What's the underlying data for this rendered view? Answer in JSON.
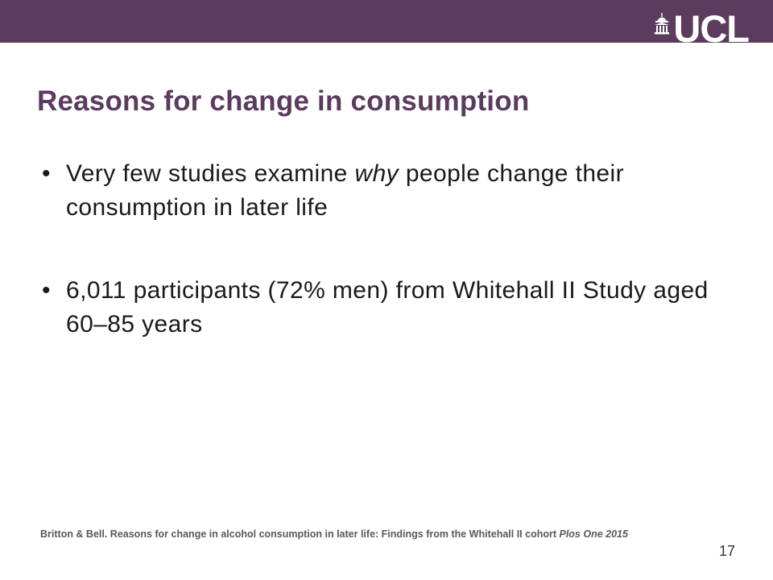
{
  "header": {
    "logo_text": "UCL",
    "bar_color": "#5c3c5e"
  },
  "slide": {
    "title": "Reasons for change in consumption",
    "title_color": "#5c3c5e",
    "bullets": [
      {
        "before": "Very few studies examine ",
        "emphasis": "why",
        "after": " people change their consumption in later life"
      },
      {
        "text": "6,011 participants (72% men) from Whitehall II Study aged 60–85 years"
      }
    ],
    "citation": {
      "text": "Britton & Bell. Reasons for change in alcohol consumption in later life: Findings from the Whitehall II cohort ",
      "journal": "Plos One 2015"
    },
    "page_number": "17"
  }
}
